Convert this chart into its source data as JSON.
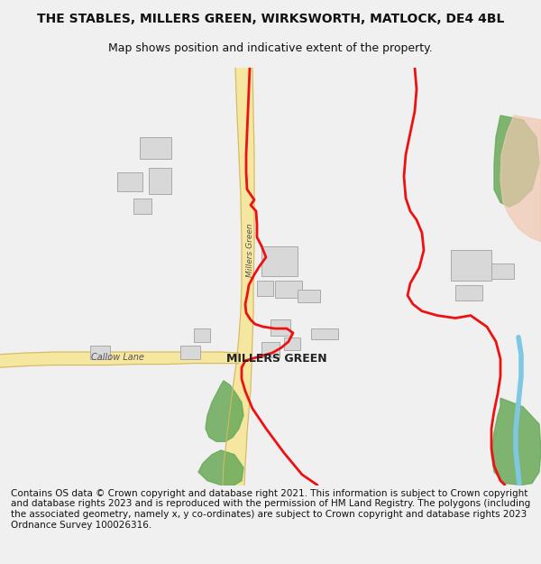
{
  "title": "THE STABLES, MILLERS GREEN, WIRKSWORTH, MATLOCK, DE4 4BL",
  "subtitle": "Map shows position and indicative extent of the property.",
  "footer": "Contains OS data © Crown copyright and database right 2021. This information is subject to Crown copyright and database rights 2023 and is reproduced with the permission of HM Land Registry. The polygons (including the associated geometry, namely x, y co-ordinates) are subject to Crown copyright and database rights 2023 Ordnance Survey 100026316.",
  "background_color": "#f8f8f8",
  "map_background": "#ffffff",
  "title_fontsize": 10,
  "subtitle_fontsize": 9,
  "footer_fontsize": 7.5,
  "figsize": [
    6.0,
    6.25
  ],
  "dpi": 100,
  "map_extent": [
    0,
    1,
    0,
    1
  ],
  "road_color_main": "#f5e6a0",
  "road_color_border": "#d4b86a",
  "green_color": "#6aaa5a",
  "blue_color": "#7ec8e3",
  "pink_color": "#f0c8b0",
  "building_color": "#d8d8d8",
  "red_line_color": "#ee1111",
  "millers_green_label": "MILLERS GREEN",
  "callow_lane_label": "Callow Lane",
  "millers_green_road_label": "Millers Green"
}
